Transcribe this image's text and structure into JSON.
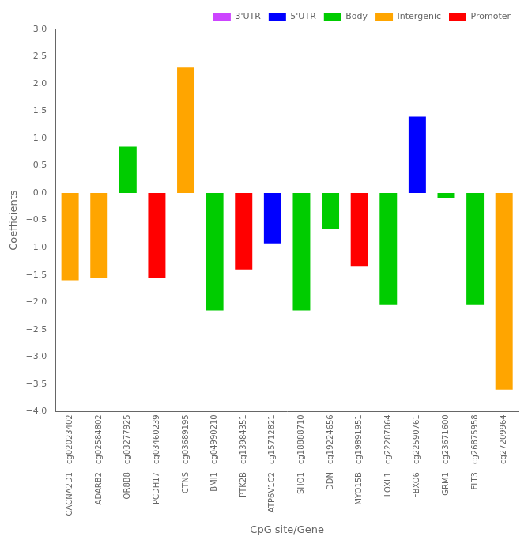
{
  "chart_data": {
    "type": "bar",
    "x_label": "CpG site/Gene",
    "y_label": "Coefficients",
    "categories": [
      [
        "cg02023402",
        "CACNA2D1"
      ],
      [
        "cg02584802",
        "ADARB2"
      ],
      [
        "cg03277925",
        "OR8B8"
      ],
      [
        "cg03460239",
        "PCDH17"
      ],
      [
        "cg03689195",
        "CTNS"
      ],
      [
        "cg04990210",
        "BMI1"
      ],
      [
        "cg13984351",
        "PTK2B"
      ],
      [
        "cg15712821",
        "ATP6V1C2"
      ],
      [
        "cg18888710",
        "SHQ1"
      ],
      [
        "cg19224656",
        "DDN"
      ],
      [
        "cg19891951",
        "MYO15B"
      ],
      [
        "cg22287064",
        "LOXL1"
      ],
      [
        "cg22590761",
        "FBXO6"
      ],
      [
        "cg23671600",
        "GRM1"
      ],
      [
        "cg26875958",
        "FLT3"
      ],
      [
        "cg27209964",
        null
      ]
    ],
    "series": [
      {
        "name": "3'UTR",
        "color": "#CC44FF",
        "values": [
          null,
          null,
          null,
          null,
          null,
          null,
          null,
          null,
          null,
          null,
          null,
          null,
          null,
          null,
          null,
          null
        ]
      },
      {
        "name": "5'UTR",
        "color": "#0000FF",
        "values": [
          null,
          null,
          null,
          null,
          null,
          null,
          null,
          -0.92,
          null,
          null,
          null,
          null,
          1.4,
          null,
          null,
          null
        ]
      },
      {
        "name": "Body",
        "color": "#00CC00",
        "values": [
          null,
          null,
          0.85,
          null,
          null,
          -2.15,
          null,
          null,
          -2.15,
          -0.65,
          null,
          -2.05,
          null,
          -0.1,
          -2.05,
          null
        ]
      },
      {
        "name": "Intergenic",
        "color": "#FFA500",
        "values": [
          -1.6,
          -1.55,
          null,
          null,
          2.3,
          null,
          null,
          null,
          null,
          null,
          null,
          null,
          null,
          null,
          null,
          -3.6
        ]
      },
      {
        "name": "Promoter",
        "color": "#FF0000",
        "values": [
          null,
          null,
          null,
          -1.55,
          null,
          null,
          -1.4,
          null,
          null,
          null,
          -1.35,
          null,
          null,
          null,
          null,
          null
        ]
      }
    ],
    "ylim": [
      -4.0,
      3.0
    ],
    "yticks": [
      {
        "value": -4.0,
        "label": "−4.0"
      },
      {
        "value": -3.5,
        "label": "−3.5"
      },
      {
        "value": -3.0,
        "label": "−3.0"
      },
      {
        "value": -2.5,
        "label": "−2.5"
      },
      {
        "value": -2.0,
        "label": "−2.0"
      },
      {
        "value": -1.5,
        "label": "−1.5"
      },
      {
        "value": -1.0,
        "label": "−1.0"
      },
      {
        "value": -0.5,
        "label": "−0.5"
      },
      {
        "value": 0.0,
        "label": "0.0"
      },
      0.5,
      {
        "value": 1.0,
        "label": "1.0"
      },
      1.5,
      {
        "value": 2.0,
        "label": "2.0"
      },
      2.5,
      {
        "value": 3.0,
        "label": "3.0"
      }
    ],
    "grid": false,
    "legend": "upper right"
  }
}
